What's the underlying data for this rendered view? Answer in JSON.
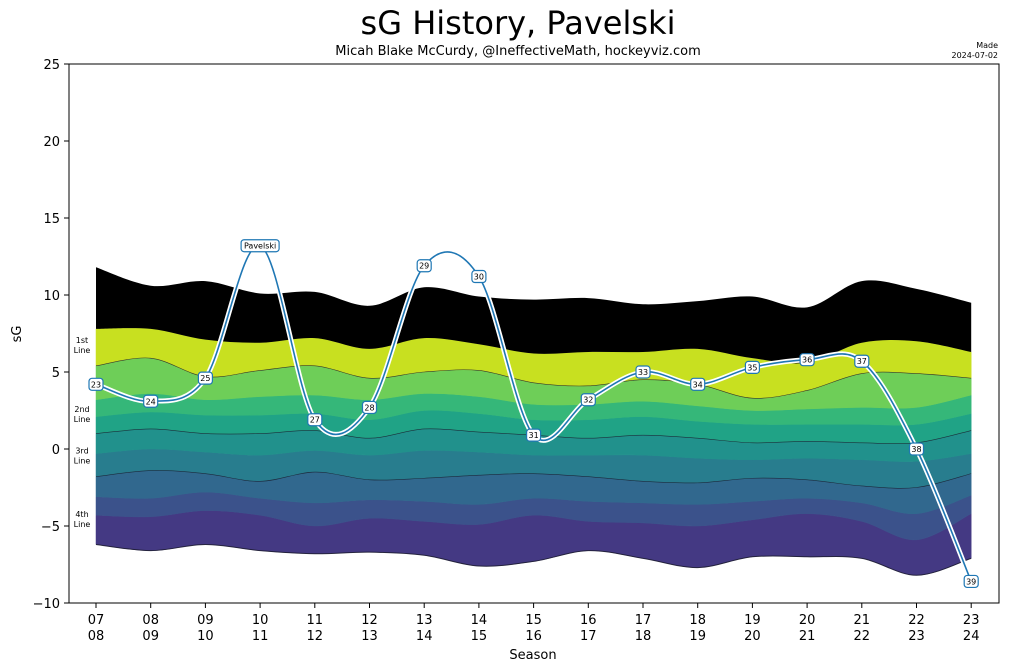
{
  "title": "sG History, Pavelski",
  "subtitle": "Micah Blake McCurdy, @IneffectiveMath, hockeyviz.com",
  "made": {
    "line1": "Made",
    "line2": "2024-07-02"
  },
  "chart_data": {
    "type": "line",
    "title": "sG History, Pavelski",
    "xlabel": "Season",
    "ylabel": "sG",
    "ylim": [
      -10,
      25
    ],
    "yticks": [
      -10,
      -5,
      0,
      5,
      10,
      15,
      20,
      25
    ],
    "ytick_labels": [
      "−10",
      "−5",
      "0",
      "5",
      "10",
      "15",
      "20",
      "25"
    ],
    "seasons": [
      [
        "07",
        "08"
      ],
      [
        "08",
        "09"
      ],
      [
        "09",
        "10"
      ],
      [
        "10",
        "11"
      ],
      [
        "11",
        "12"
      ],
      [
        "12",
        "13"
      ],
      [
        "13",
        "14"
      ],
      [
        "14",
        "15"
      ],
      [
        "15",
        "16"
      ],
      [
        "16",
        "17"
      ],
      [
        "17",
        "18"
      ],
      [
        "18",
        "19"
      ],
      [
        "19",
        "20"
      ],
      [
        "20",
        "21"
      ],
      [
        "21",
        "22"
      ],
      [
        "22",
        "23"
      ],
      [
        "23",
        "24"
      ]
    ],
    "series": [
      {
        "name": "Pavelski",
        "color": "#1f77b4",
        "point_labels": [
          "23",
          "24",
          "25",
          "Pavelski",
          "27",
          "28",
          "29",
          "30",
          "31",
          "32",
          "33",
          "34",
          "35",
          "36",
          "37",
          "38",
          "39"
        ],
        "values": [
          4.2,
          3.1,
          4.6,
          13.2,
          1.9,
          2.7,
          11.9,
          11.2,
          0.9,
          3.2,
          5.0,
          4.2,
          5.3,
          5.8,
          5.7,
          0.0,
          -8.6
        ]
      }
    ],
    "band_colors": [
      "#443983",
      "#3b528b",
      "#31688e",
      "#287d8e",
      "#21918c",
      "#20a386",
      "#35b779",
      "#6ece58",
      "#c8e020"
    ],
    "band_boundaries": [
      [
        -6.2,
        -6.6,
        -6.2,
        -6.6,
        -6.8,
        -6.7,
        -6.9,
        -7.6,
        -7.3,
        -6.6,
        -7.1,
        -7.7,
        -7.0,
        -7.0,
        -7.1,
        -8.2,
        -7.1
      ],
      [
        -4.3,
        -4.4,
        -4.0,
        -4.3,
        -5.0,
        -4.5,
        -4.7,
        -4.9,
        -4.3,
        -4.7,
        -4.8,
        -5.0,
        -4.6,
        -4.2,
        -4.7,
        -5.9,
        -4.2
      ],
      [
        -3.1,
        -3.2,
        -2.8,
        -3.2,
        -3.5,
        -3.3,
        -3.4,
        -3.6,
        -3.2,
        -3.4,
        -3.5,
        -3.6,
        -3.4,
        -3.2,
        -3.5,
        -4.2,
        -3.0
      ],
      [
        -1.8,
        -1.4,
        -1.6,
        -2.1,
        -1.5,
        -2.0,
        -1.9,
        -1.7,
        -1.6,
        -1.8,
        -2.1,
        -2.2,
        -1.9,
        -2.0,
        -2.4,
        -2.5,
        -1.6
      ],
      [
        -0.3,
        0.0,
        -0.2,
        -0.4,
        -0.1,
        -0.4,
        -0.1,
        -0.2,
        -0.4,
        -0.4,
        -0.4,
        -0.6,
        -0.7,
        -0.6,
        -0.7,
        -0.8,
        -0.3
      ],
      [
        1.0,
        1.3,
        1.0,
        1.0,
        1.2,
        0.7,
        1.3,
        1.1,
        0.9,
        0.7,
        0.9,
        0.7,
        0.4,
        0.5,
        0.4,
        0.4,
        1.2
      ],
      [
        2.1,
        2.4,
        2.2,
        2.2,
        2.3,
        1.9,
        2.5,
        2.3,
        1.9,
        1.9,
        2.1,
        1.8,
        1.6,
        1.6,
        1.6,
        1.6,
        2.3
      ],
      [
        3.2,
        3.6,
        3.2,
        3.4,
        3.5,
        3.2,
        3.6,
        3.4,
        2.9,
        2.9,
        3.1,
        2.8,
        2.5,
        2.6,
        2.7,
        2.7,
        3.5
      ],
      [
        5.4,
        5.9,
        4.7,
        5.1,
        5.4,
        4.6,
        5.0,
        5.1,
        4.3,
        4.1,
        4.5,
        4.2,
        3.3,
        3.8,
        4.9,
        4.9,
        4.6
      ],
      [
        7.8,
        7.8,
        7.1,
        6.9,
        7.2,
        6.5,
        7.2,
        6.8,
        6.2,
        6.3,
        6.3,
        6.5,
        5.9,
        5.6,
        6.9,
        7.0,
        6.3
      ],
      [
        11.8,
        10.6,
        10.9,
        10.1,
        10.2,
        9.3,
        10.5,
        9.9,
        9.7,
        9.8,
        9.4,
        9.6,
        9.9,
        9.2,
        10.9,
        10.4,
        9.5
      ]
    ],
    "band_labels": [
      {
        "text": [
          "1st",
          "Line"
        ],
        "y": 6.7
      },
      {
        "text": [
          "2nd",
          "Line"
        ],
        "y": 2.2
      },
      {
        "text": [
          "3rd",
          "Line"
        ],
        "y": -0.5
      },
      {
        "text": [
          "4th",
          "Line"
        ],
        "y": -4.6
      }
    ]
  }
}
